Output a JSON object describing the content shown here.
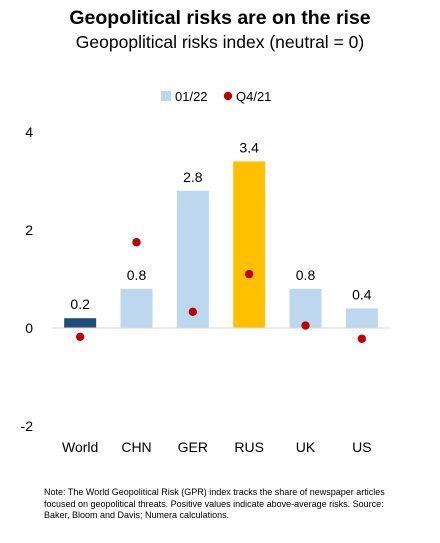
{
  "chart_data": {
    "type": "bar",
    "title": "Geopolitical risks are on the rise",
    "subtitle": "Geopoplitical risks index (neutral = 0)",
    "categories": [
      "World",
      "CHN",
      "GER",
      "RUS",
      "UK",
      "US"
    ],
    "series": [
      {
        "name": "01/22",
        "type": "bar",
        "values": [
          0.2,
          0.8,
          2.8,
          3.4,
          0.8,
          0.4
        ],
        "data_labels": [
          "0.2",
          "0.8",
          "2.8",
          "3.4",
          "0.8",
          "0.4"
        ],
        "color": "#bdd7ee",
        "bar_colors": [
          "#1f4e79",
          "#bdd7ee",
          "#bdd7ee",
          "#ffc000",
          "#bdd7ee",
          "#bdd7ee"
        ]
      },
      {
        "name": "Q4/21",
        "type": "scatter",
        "values": [
          -0.18,
          1.75,
          0.33,
          1.1,
          0.05,
          -0.22
        ],
        "color": "#c00000"
      }
    ],
    "y_ticks": [
      "4",
      "2",
      "0",
      "-2"
    ],
    "ylim": [
      -2,
      4
    ],
    "legend_position": "top",
    "grid": false
  },
  "footnote": "Note: The World Geopolitical Risk (GPR) index tracks the share of newspaper articles focused on geopolitical threats. Positive values indicate above-average risks. Source: Baker, Bloom and Davis; Numera calculations."
}
